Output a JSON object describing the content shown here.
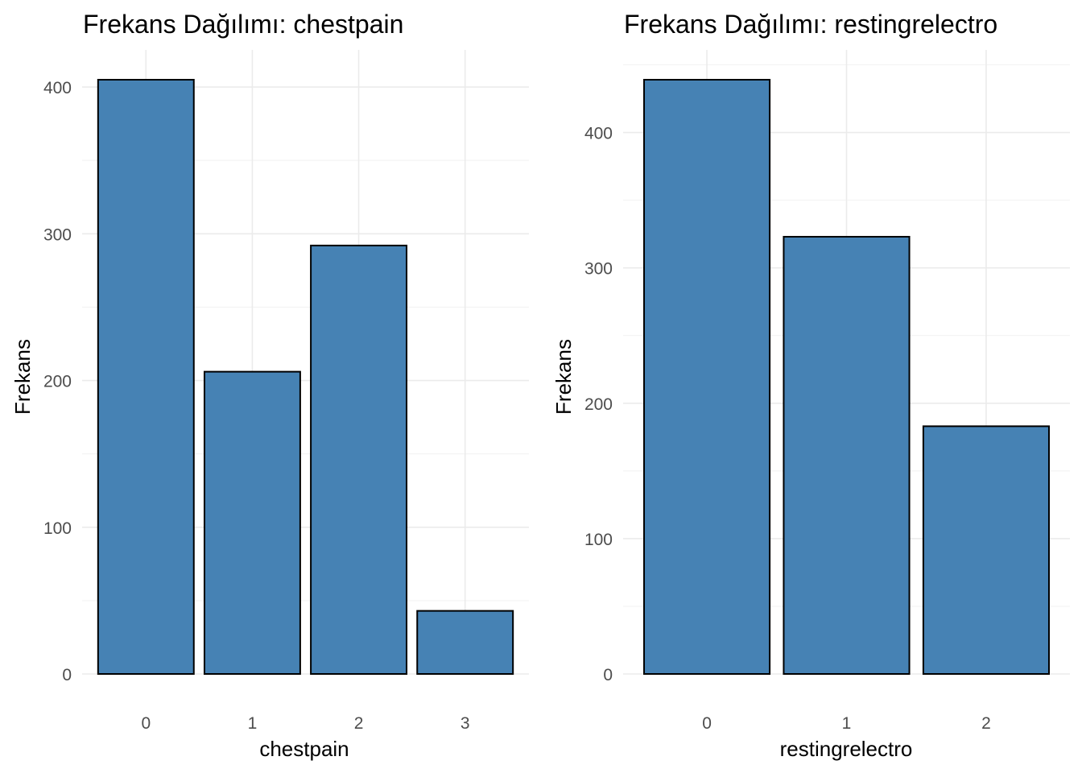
{
  "chart_data": [
    {
      "type": "bar",
      "title": "Frekans Dağılımı: chestpain",
      "xlabel": "chestpain",
      "ylabel": "Frekans",
      "categories": [
        "0",
        "1",
        "2",
        "3"
      ],
      "values": [
        405,
        206,
        292,
        43
      ],
      "ylim": [
        0,
        405
      ],
      "yticks": [
        0,
        100,
        200,
        300,
        400
      ],
      "ytick_labels": [
        "0",
        "100",
        "200",
        "300",
        "400"
      ],
      "grid": true,
      "bar_color": "#4682b4",
      "edge_color": "#000000"
    },
    {
      "type": "bar",
      "title": "Frekans Dağılımı: restingrelectro",
      "xlabel": "restingrelectro",
      "ylabel": "Frekans",
      "categories": [
        "0",
        "1",
        "2"
      ],
      "values": [
        439,
        323,
        183
      ],
      "ylim": [
        0,
        439
      ],
      "yticks": [
        0,
        100,
        200,
        300,
        400
      ],
      "ytick_labels": [
        "0",
        "100",
        "200",
        "300",
        "400"
      ],
      "grid": true,
      "bar_color": "#4682b4",
      "edge_color": "#000000"
    }
  ]
}
